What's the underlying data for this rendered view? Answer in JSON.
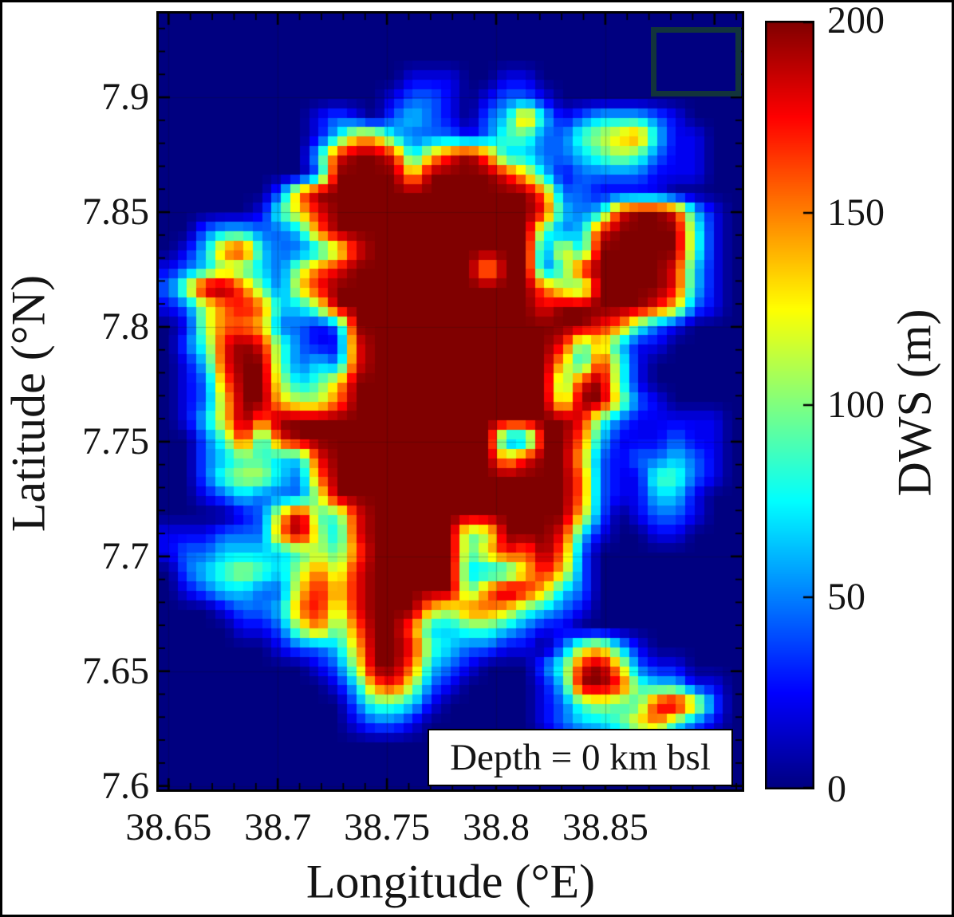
{
  "figure": {
    "background": "#ffffff",
    "border_color": "#000000"
  },
  "chart_data": {
    "type": "heatmap",
    "title": "",
    "xlabel": "Longitude (°E)",
    "ylabel": "Latitude (°N)",
    "annotation": "Depth = 0 km bsl",
    "xlim": [
      38.6455,
      38.9125
    ],
    "ylim": [
      7.5985,
      7.9365
    ],
    "x_ticks": [
      38.65,
      38.7,
      38.75,
      38.8,
      38.85
    ],
    "x_tick_labels": [
      "38.65",
      "38.7",
      "38.75",
      "38.8",
      "38.85"
    ],
    "y_ticks": [
      7.9,
      7.85,
      7.8,
      7.75,
      7.7,
      7.65,
      7.6
    ],
    "y_tick_labels": [
      "7.9",
      "7.85",
      "7.8",
      "7.75",
      "7.7",
      "7.65",
      "7.6"
    ],
    "minor_tick_step": 0.01,
    "grid": true,
    "colormap": "jet",
    "value_min": 0,
    "value_max": 200,
    "colorbar": {
      "label": "DWS (m)",
      "min": 0,
      "max": 200,
      "ticks": [
        0,
        50,
        100,
        150,
        200
      ],
      "tick_labels": [
        "0",
        "50",
        "100",
        "150",
        "200"
      ]
    },
    "grid_cols": 31,
    "grid_rows": 41,
    "grid_values_scale": "digit 0-9 maps linearly to DWS 0-200 m",
    "grid_values": [
      "0000000000000000000000000000000",
      "0000000000000000000000000000000",
      "0000000000000000000000000000000",
      "0000000000000111001100000000000",
      "0000000000001221012210000000000",
      "0000000012102321023731233321000",
      "0000000013663222124422456731100",
      "0000000038998368973322345421100",
      "0000000029999699998631222211100",
      "0000002799999999999972211110000",
      "0000014689999999999983238998310",
      "0023322379999999999942389999410",
      "0137832235899999999926399999410",
      "1235432578999999969924899998310",
      "2599742689999999999975499998310",
      "1257873359999999999989999986210",
      "0157762212999999999999987421000",
      "0248984211899999999998463110000",
      "0138994232899999999996384100000",
      "0127995346999999999994894100000",
      "0126996557999999999995995210000",
      "0136979999999999999999842111110",
      "0024838999999999992299731112110",
      "0023443389999999996899621223210",
      "0024553279999999999999721144210",
      "0012322259999999999999721133100",
      "0000126944899999999999620122100",
      "1112227953899999459998310011000",
      "1223333454799999468797200000000",
      "0234543575899999333686200000000",
      "0123322686899999479863200000000",
      "0001223785899965776432100000000",
      "0000112574799733443211000000000",
      "0000001223699843221102563100000",
      "0000000012599732100024896211000",
      "0000000001378521000013998433110",
      "0000000000244310000012454489620",
      "0000000000122100000012334674210",
      "0000000000000000000001122221100",
      "0000000000000000000000000000000",
      "0000000000000000000000000000000"
    ],
    "inset_box": {
      "present": true,
      "fill": "none"
    }
  },
  "colors": {
    "jet_low": "#000080",
    "jet_high": "#800000",
    "inset_stroke": "#12343c",
    "annotation_bg": "#ffffff",
    "axis_color": "#000000",
    "text": "#141414"
  }
}
